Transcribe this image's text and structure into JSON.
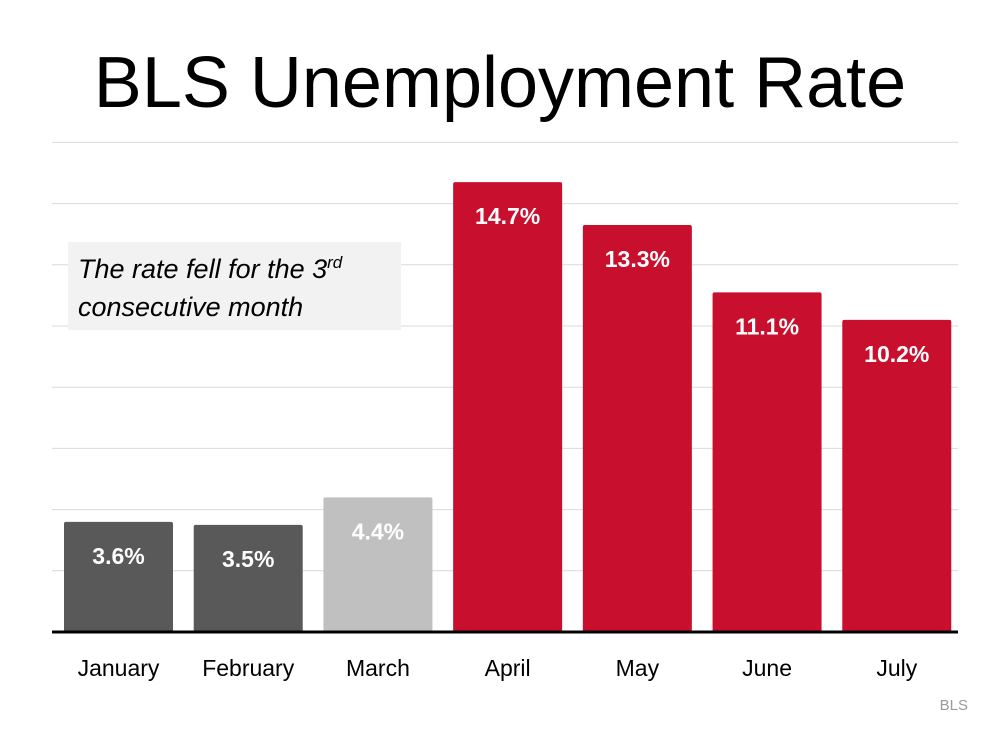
{
  "title": "BLS Unemployment Rate",
  "annotation": {
    "text_before": "The rate fell for the 3",
    "superscript": "rd",
    "text_after": "consecutive month"
  },
  "source": "BLS",
  "colors": {
    "pre_pandemic": "#595959",
    "march": "#c0c0c0",
    "pandemic": "#c8102e",
    "gridline": "#d9d9d9",
    "axis": "#000000"
  },
  "chart_data": {
    "type": "bar",
    "categories": [
      "January",
      "February",
      "March",
      "April",
      "May",
      "June",
      "July"
    ],
    "values": [
      3.6,
      3.5,
      4.4,
      14.7,
      13.3,
      11.1,
      10.2
    ],
    "data_labels": [
      "3.6%",
      "3.5%",
      "4.4%",
      "14.7%",
      "13.3%",
      "11.1%",
      "10.2%"
    ],
    "bar_color_keys": [
      "pre_pandemic",
      "pre_pandemic",
      "march",
      "pandemic",
      "pandemic",
      "pandemic",
      "pandemic"
    ],
    "title": "BLS Unemployment Rate",
    "xlabel": "",
    "ylabel": "",
    "ylim": [
      0,
      16
    ],
    "grid": true,
    "legend": "none"
  }
}
